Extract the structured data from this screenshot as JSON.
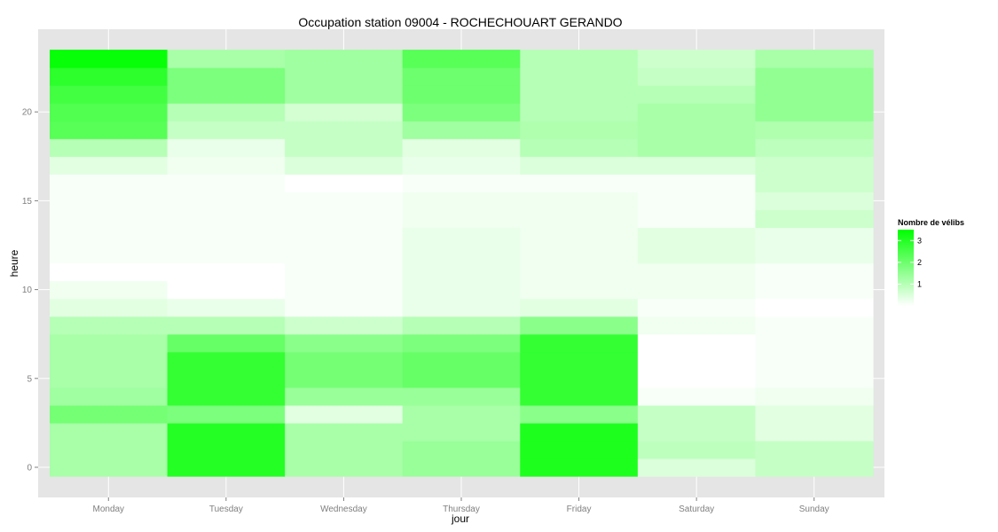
{
  "chart_data": {
    "type": "heatmap",
    "title": "Occupation station 09004 - ROCHECHOUART GERANDO",
    "xlabel": "jour",
    "ylabel": "heure",
    "x_categories": [
      "Monday",
      "Tuesday",
      "Wednesday",
      "Thursday",
      "Friday",
      "Saturday",
      "Sunday"
    ],
    "y_range": [
      0,
      23
    ],
    "y_ticks": [
      0,
      5,
      10,
      15,
      20
    ],
    "legend": {
      "title": "Nombre de vélibs",
      "placement": "right",
      "ticks": [
        1,
        2,
        3
      ],
      "min": 0,
      "max": 3.5,
      "low_color": "#ffffff",
      "high_color": "#00ff00"
    },
    "background_color": "#e5e5e5",
    "grid": true,
    "values": [
      [
        1.2,
        3.0,
        1.2,
        1.4,
        3.1,
        0.5,
        0.8
      ],
      [
        1.2,
        3.0,
        1.2,
        1.4,
        3.1,
        0.9,
        0.8
      ],
      [
        1.2,
        3.0,
        1.2,
        1.2,
        3.1,
        0.8,
        0.4
      ],
      [
        1.9,
        1.8,
        0.4,
        1.2,
        1.6,
        0.8,
        0.4
      ],
      [
        1.3,
        2.8,
        1.4,
        1.4,
        2.8,
        0.1,
        0.2
      ],
      [
        1.2,
        2.8,
        1.9,
        2.1,
        2.8,
        0.0,
        0.1
      ],
      [
        1.2,
        2.8,
        1.9,
        2.1,
        2.8,
        0.0,
        0.1
      ],
      [
        1.2,
        2.1,
        1.6,
        1.8,
        2.8,
        0.0,
        0.1
      ],
      [
        1.0,
        1.0,
        0.7,
        1.0,
        1.6,
        0.2,
        0.1
      ],
      [
        0.4,
        0.3,
        0.1,
        0.3,
        0.4,
        0.1,
        0.0
      ],
      [
        0.2,
        0.0,
        0.1,
        0.3,
        0.2,
        0.2,
        0.1
      ],
      [
        0.0,
        0.0,
        0.1,
        0.3,
        0.2,
        0.2,
        0.1
      ],
      [
        0.1,
        0.1,
        0.1,
        0.3,
        0.2,
        0.4,
        0.3
      ],
      [
        0.1,
        0.1,
        0.1,
        0.3,
        0.2,
        0.4,
        0.3
      ],
      [
        0.1,
        0.1,
        0.1,
        0.2,
        0.2,
        0.1,
        0.7
      ],
      [
        0.1,
        0.1,
        0.1,
        0.2,
        0.2,
        0.1,
        0.5
      ],
      [
        0.1,
        0.1,
        0.0,
        0.1,
        0.1,
        0.1,
        0.7
      ],
      [
        0.4,
        0.2,
        0.5,
        0.3,
        0.5,
        0.5,
        0.7
      ],
      [
        1.0,
        0.3,
        0.8,
        0.4,
        1.0,
        1.2,
        0.9
      ],
      [
        2.3,
        0.8,
        0.8,
        1.3,
        1.1,
        1.2,
        1.1
      ],
      [
        2.4,
        1.0,
        0.6,
        1.8,
        1.0,
        1.2,
        1.5
      ],
      [
        2.6,
        1.8,
        1.3,
        2.0,
        1.0,
        1.0,
        1.5
      ],
      [
        2.9,
        1.8,
        1.3,
        2.0,
        1.0,
        0.8,
        1.5
      ],
      [
        3.4,
        1.2,
        1.3,
        2.3,
        1.0,
        0.7,
        1.2
      ]
    ]
  }
}
